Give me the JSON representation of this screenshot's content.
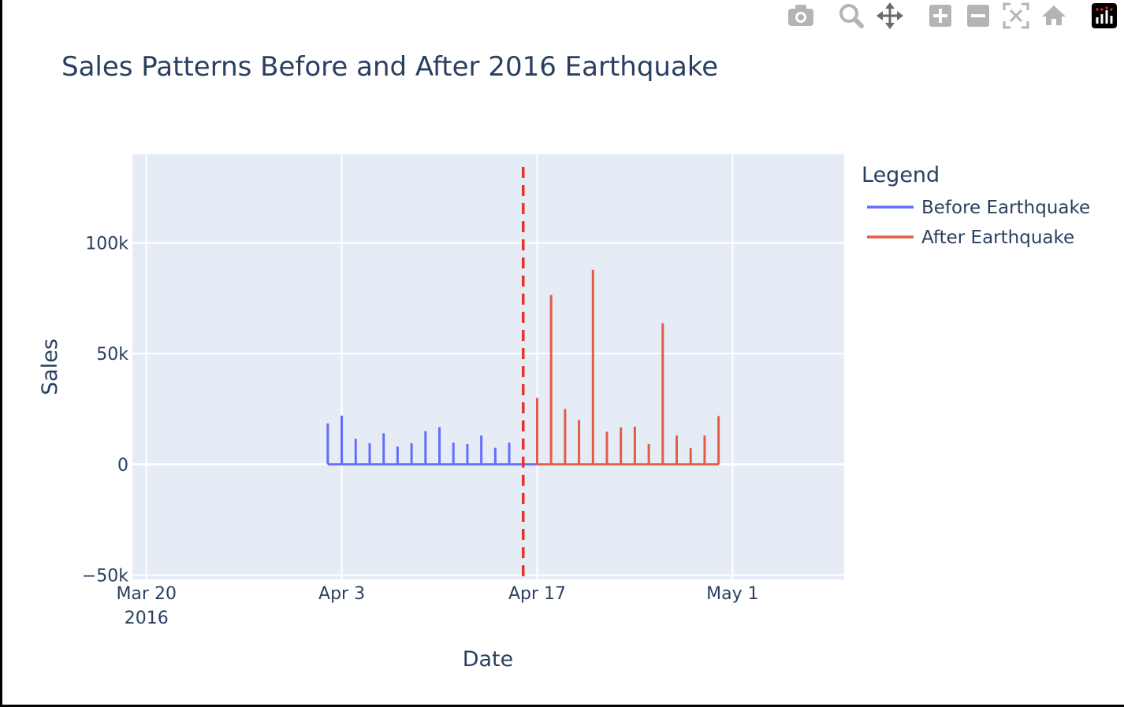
{
  "title": "Sales Patterns Before and After 2016 Earthquake",
  "colors": {
    "before": "#636efa",
    "after": "#e45c44",
    "event_line": "#e8332a",
    "plot_bg": "#e5ecf6",
    "grid": "#ffffff",
    "text": "#2a3f5f",
    "modebar_icon": "#b4b4b4"
  },
  "modebar": [
    {
      "name": "camera-icon",
      "label": "Download plot as a png"
    },
    {
      "name": "zoom-icon",
      "label": "Zoom"
    },
    {
      "name": "pan-icon",
      "label": "Pan"
    },
    {
      "name": "zoom-in-icon",
      "label": "Zoom in"
    },
    {
      "name": "zoom-out-icon",
      "label": "Zoom out"
    },
    {
      "name": "autoscale-icon",
      "label": "Autoscale"
    },
    {
      "name": "home-icon",
      "label": "Reset axes"
    },
    {
      "name": "plotly-logo-icon",
      "label": "Produced with Plotly"
    }
  ],
  "chart_data": {
    "type": "line",
    "title": "Sales Patterns Before and After 2016 Earthquake",
    "xlabel": "Date",
    "ylabel": "Sales",
    "xlim": [
      "2016-03-19",
      "2016-05-09"
    ],
    "ylim": [
      -52000,
      140000
    ],
    "x_ticks": [
      {
        "date": "2016-03-20",
        "label": "Mar 20",
        "sublabel": "2016"
      },
      {
        "date": "2016-04-03",
        "label": "Apr 3"
      },
      {
        "date": "2016-04-17",
        "label": "Apr 17"
      },
      {
        "date": "2016-05-01",
        "label": "May 1"
      }
    ],
    "y_ticks": [
      {
        "value": -50000,
        "label": "−50k"
      },
      {
        "value": 0,
        "label": "0"
      },
      {
        "value": 50000,
        "label": "50k"
      },
      {
        "value": 100000,
        "label": "100k"
      }
    ],
    "grid": true,
    "legend": {
      "title": "Legend",
      "position": "top-right outside"
    },
    "event_line": {
      "date": "2016-04-16",
      "style": "dashed"
    },
    "series": [
      {
        "name": "Before Earthquake",
        "color": "#636efa",
        "points": [
          {
            "date": "2016-04-02",
            "value": 18500
          },
          {
            "date": "2016-04-03",
            "value": 22000
          },
          {
            "date": "2016-04-04",
            "value": 11500
          },
          {
            "date": "2016-04-05",
            "value": 9500
          },
          {
            "date": "2016-04-06",
            "value": 14000
          },
          {
            "date": "2016-04-07",
            "value": 8000
          },
          {
            "date": "2016-04-08",
            "value": 9500
          },
          {
            "date": "2016-04-09",
            "value": 15000
          },
          {
            "date": "2016-04-10",
            "value": 16800
          },
          {
            "date": "2016-04-11",
            "value": 9800
          },
          {
            "date": "2016-04-12",
            "value": 9200
          },
          {
            "date": "2016-04-13",
            "value": 13000
          },
          {
            "date": "2016-04-14",
            "value": 7500
          },
          {
            "date": "2016-04-15",
            "value": 9800
          }
        ]
      },
      {
        "name": "After Earthquake",
        "color": "#e45c44",
        "points": [
          {
            "date": "2016-04-17",
            "value": 30000
          },
          {
            "date": "2016-04-18",
            "value": 76500
          },
          {
            "date": "2016-04-19",
            "value": 25000
          },
          {
            "date": "2016-04-20",
            "value": 20000
          },
          {
            "date": "2016-04-21",
            "value": 87800
          },
          {
            "date": "2016-04-22",
            "value": 14700
          },
          {
            "date": "2016-04-23",
            "value": 16700
          },
          {
            "date": "2016-04-24",
            "value": 17000
          },
          {
            "date": "2016-04-25",
            "value": 9200
          },
          {
            "date": "2016-04-26",
            "value": 63700
          },
          {
            "date": "2016-04-27",
            "value": 13000
          },
          {
            "date": "2016-04-28",
            "value": 7300
          },
          {
            "date": "2016-04-29",
            "value": 13000
          },
          {
            "date": "2016-04-30",
            "value": 21800
          }
        ]
      }
    ]
  }
}
